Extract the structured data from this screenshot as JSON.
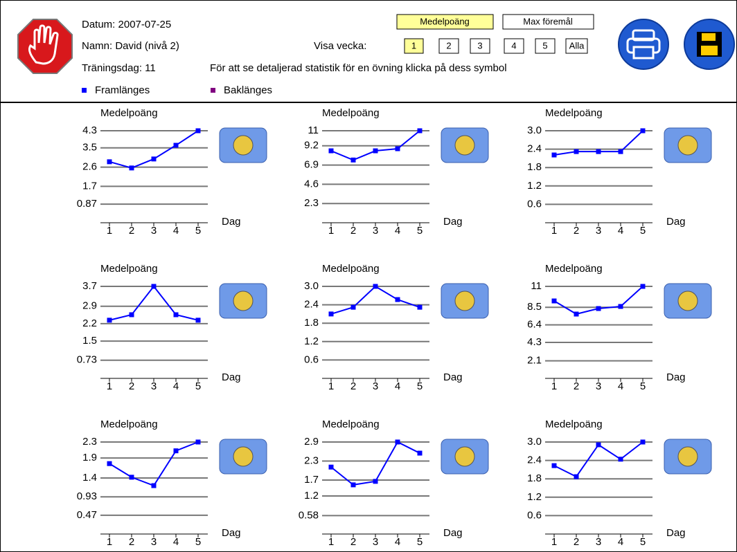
{
  "header": {
    "date": "Datum: 2007-07-25",
    "name": "Namn: David (nivå 2)",
    "day": "Träningsdag: 11",
    "hint": "För att se detaljerad statistik för en övning klicka på dess symbol",
    "week_label": "Visa vecka:",
    "mode_buttons": [
      "Medelpoäng",
      "Max föremål"
    ],
    "week_buttons": [
      "1",
      "2",
      "3",
      "4",
      "5",
      "Alla"
    ],
    "legend": [
      {
        "name": "Framlänges",
        "color": "#0000ff"
      },
      {
        "name": "Baklänges",
        "color": "#800080"
      }
    ]
  },
  "chart_data": [
    {
      "type": "line",
      "title": "Medelpoäng",
      "xlabel": "Dag",
      "categories": [
        "1",
        "2",
        "3",
        "4",
        "5"
      ],
      "values": [
        2.85,
        2.56,
        2.98,
        3.62,
        4.3
      ],
      "color": "#0000ff",
      "ylim": [
        0,
        4.3
      ],
      "yticks": [
        0.87,
        1.7,
        2.6,
        3.5,
        4.3
      ],
      "grid": true
    },
    {
      "type": "line",
      "title": "Medelpoäng",
      "xlabel": "Dag",
      "categories": [
        "1",
        "2",
        "3",
        "4",
        "5"
      ],
      "values": [
        8.6,
        7.5,
        8.6,
        8.85,
        11
      ],
      "color": "#0000ff",
      "ylim": [
        0,
        11
      ],
      "yticks": [
        2.3,
        4.6,
        6.9,
        9.2,
        11
      ],
      "grid": true
    },
    {
      "type": "line",
      "title": "Medelpoäng",
      "xlabel": "Dag",
      "categories": [
        "1",
        "2",
        "3",
        "4",
        "5"
      ],
      "values": [
        2.21,
        2.32,
        2.32,
        2.32,
        3.0
      ],
      "color": "#0000ff",
      "ylim": [
        0,
        3.0
      ],
      "yticks": [
        0.6,
        1.2,
        1.8,
        2.4,
        {
          "value": 3.0,
          "label": "3.0"
        }
      ],
      "grid": true
    },
    {
      "type": "line",
      "title": "Medelpoäng",
      "xlabel": "Dag",
      "categories": [
        "1",
        "2",
        "3",
        "4",
        "5"
      ],
      "values": [
        2.34,
        2.56,
        3.7,
        2.56,
        2.34
      ],
      "color": "#0000ff",
      "ylim": [
        0,
        3.7
      ],
      "yticks": [
        0.73,
        1.5,
        2.2,
        2.9,
        3.7
      ],
      "grid": true
    },
    {
      "type": "line",
      "title": "Medelpoäng",
      "xlabel": "Dag",
      "categories": [
        "1",
        "2",
        "3",
        "4",
        "5"
      ],
      "values": [
        2.1,
        2.32,
        3.0,
        2.57,
        2.32
      ],
      "color": "#0000ff",
      "ylim": [
        0,
        3.0
      ],
      "yticks": [
        0.6,
        1.2,
        1.8,
        2.4,
        {
          "value": 3.0,
          "label": "3.0"
        }
      ],
      "grid": true
    },
    {
      "type": "line",
      "title": "Medelpoäng",
      "xlabel": "Dag",
      "categories": [
        "1",
        "2",
        "3",
        "4",
        "5"
      ],
      "values": [
        9.26,
        7.69,
        8.35,
        8.6,
        11
      ],
      "color": "#0000ff",
      "ylim": [
        0,
        11
      ],
      "yticks": [
        2.1,
        4.3,
        6.4,
        8.5,
        11
      ],
      "grid": true
    },
    {
      "type": "line",
      "title": "Medelpoäng",
      "xlabel": "Dag",
      "categories": [
        "1",
        "2",
        "3",
        "4",
        "5"
      ],
      "values": [
        1.76,
        1.42,
        1.21,
        2.08,
        2.3
      ],
      "color": "#0000ff",
      "ylim": [
        0,
        2.3
      ],
      "yticks": [
        0.47,
        0.93,
        1.4,
        1.9,
        2.3
      ],
      "grid": true
    },
    {
      "type": "line",
      "title": "Medelpoäng",
      "xlabel": "Dag",
      "categories": [
        "1",
        "2",
        "3",
        "4",
        "5"
      ],
      "values": [
        2.11,
        1.55,
        1.66,
        2.9,
        2.55
      ],
      "color": "#0000ff",
      "ylim": [
        0,
        2.9
      ],
      "yticks": [
        0.58,
        1.2,
        1.7,
        2.3,
        2.9
      ],
      "grid": true
    },
    {
      "type": "line",
      "title": "Medelpoäng",
      "xlabel": "Dag",
      "categories": [
        "1",
        "2",
        "3",
        "4",
        "5"
      ],
      "values": [
        2.23,
        1.87,
        2.91,
        2.44,
        3.0
      ],
      "color": "#0000ff",
      "ylim": [
        0,
        3.0
      ],
      "yticks": [
        0.6,
        1.2,
        1.8,
        2.4,
        {
          "value": 3.0,
          "label": "3.0"
        }
      ],
      "grid": true
    }
  ]
}
